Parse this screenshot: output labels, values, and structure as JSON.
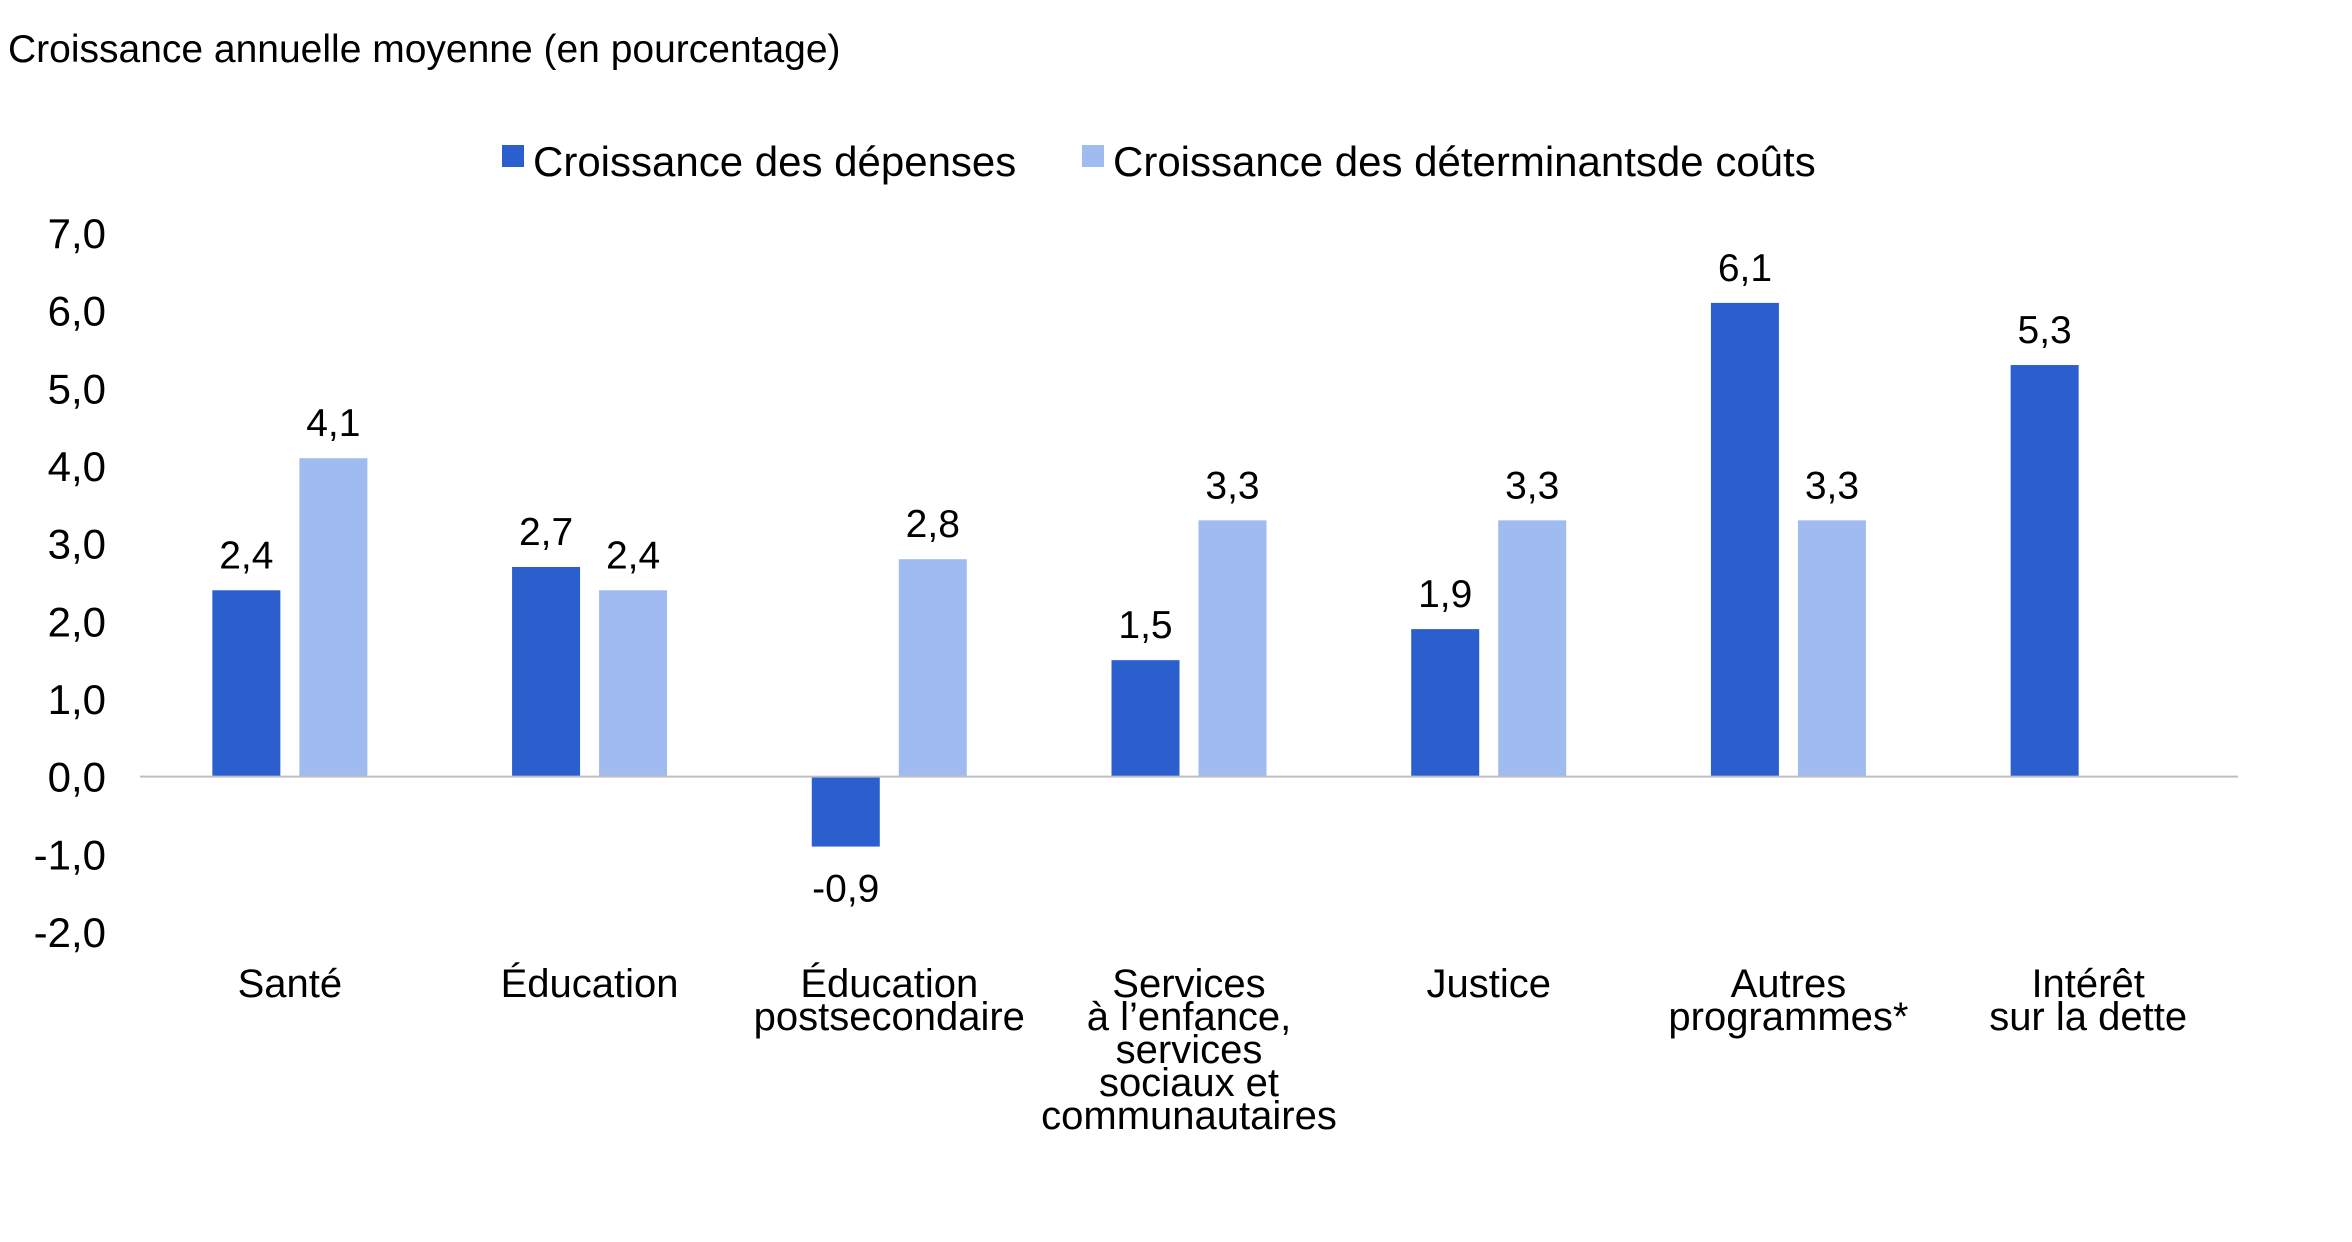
{
  "chart_data": {
    "type": "bar",
    "title": "Croissance annuelle moyenne (en pourcentage)",
    "xlabel": "",
    "ylabel": "",
    "ylim": [
      -2.0,
      7.0
    ],
    "yticks": [
      "7,0",
      "6,0",
      "5,0",
      "4,0",
      "3,0",
      "2,0",
      "1,0",
      "0,0",
      "-1,0",
      "-2,0"
    ],
    "grid": false,
    "legend_position": "top-center",
    "categories": [
      [
        "Santé"
      ],
      [
        "Éducation"
      ],
      [
        "Éducation",
        "postsecondaire"
      ],
      [
        "Services",
        "à l’enfance,",
        "services",
        "sociaux et",
        "communautaires"
      ],
      [
        "Justice"
      ],
      [
        "Autres",
        "programmes*"
      ],
      [
        "Intérêt",
        "sur la dette"
      ]
    ],
    "series": [
      {
        "name": "Croissance des dépenses",
        "color": "#2b5fce",
        "values": [
          2.4,
          2.7,
          -0.9,
          1.5,
          1.9,
          6.1,
          5.3
        ],
        "labels": [
          "2,4",
          "2,7",
          "-0,9",
          "1,5",
          "1,9",
          "6,1",
          "5,3"
        ]
      },
      {
        "name": "Croissance des déterminantsde coûts",
        "color": "#9fbbf0",
        "values": [
          4.1,
          2.4,
          2.8,
          3.3,
          3.3,
          3.3,
          null
        ],
        "labels": [
          "4,1",
          "2,4",
          "2,8",
          "3,3",
          "3,3",
          "3,3",
          ""
        ]
      }
    ]
  }
}
